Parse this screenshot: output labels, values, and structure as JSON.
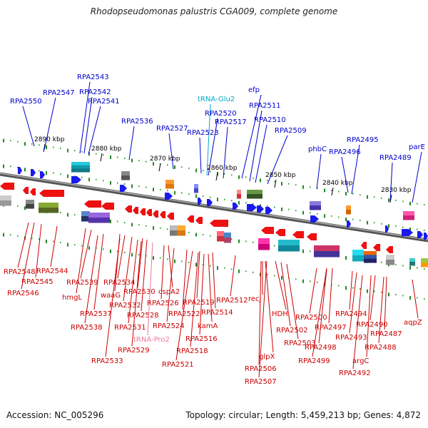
{
  "title": "Rhodopseudomonas palustris CGA009, complete genome",
  "footer": {
    "accession": "Accession: NC_005296",
    "summary": "Topology: circular; Length: 5,459,213 bp; Genes: 4,872"
  },
  "colors": {
    "forward_gene": "#1a1aee",
    "reverse_gene": "#ee1111",
    "label_forward": "#0000cc",
    "label_reverse": "#cc0000",
    "label_trna_forward": "#00aacc",
    "label_trna_reverse": "#ee7799",
    "axis": "#777777",
    "tick_mark": "#228822"
  },
  "coordinate_ticks": [
    "2890 kbp",
    "2880 kbp",
    "2870 kbp",
    "2860 kbp",
    "2850 kbp",
    "2840 kbp",
    "2830 kbp"
  ],
  "forward_labels": [
    {
      "text": "RPA2550",
      "kind": "gene"
    },
    {
      "text": "RPA2547",
      "kind": "gene"
    },
    {
      "text": "RPA2543",
      "kind": "gene"
    },
    {
      "text": "RPA2542",
      "kind": "gene"
    },
    {
      "text": "RPA2541",
      "kind": "gene"
    },
    {
      "text": "RPA2536",
      "kind": "gene"
    },
    {
      "text": "RPA2527",
      "kind": "gene"
    },
    {
      "text": "tRNA-Glu2",
      "kind": "trna"
    },
    {
      "text": "RPA2520",
      "kind": "gene"
    },
    {
      "text": "RPA2523",
      "kind": "gene"
    },
    {
      "text": "RPA2517",
      "kind": "gene"
    },
    {
      "text": "efp",
      "kind": "gene"
    },
    {
      "text": "RPA2511",
      "kind": "gene"
    },
    {
      "text": "RPA2510",
      "kind": "gene"
    },
    {
      "text": "RPA2509",
      "kind": "gene"
    },
    {
      "text": "phbC",
      "kind": "gene"
    },
    {
      "text": "RPA2495",
      "kind": "gene"
    },
    {
      "text": "RPA2496",
      "kind": "gene"
    },
    {
      "text": "RPA2489",
      "kind": "gene"
    },
    {
      "text": "parE",
      "kind": "gene"
    }
  ],
  "reverse_labels": [
    {
      "text": "RPA2548",
      "kind": "gene"
    },
    {
      "text": "RPA2544",
      "kind": "gene"
    },
    {
      "text": "RPA2545",
      "kind": "gene"
    },
    {
      "text": "RPA2546",
      "kind": "gene"
    },
    {
      "text": "RPA2539",
      "kind": "gene"
    },
    {
      "text": "hmgL",
      "kind": "gene"
    },
    {
      "text": "RPA2534",
      "kind": "gene"
    },
    {
      "text": "waaG",
      "kind": "gene"
    },
    {
      "text": "RPA2530",
      "kind": "gene"
    },
    {
      "text": "RPA2532",
      "kind": "gene"
    },
    {
      "text": "RPA2537",
      "kind": "gene"
    },
    {
      "text": "RPA2528",
      "kind": "gene"
    },
    {
      "text": "RPA2538",
      "kind": "gene"
    },
    {
      "text": "RPA2531",
      "kind": "gene"
    },
    {
      "text": "tRNA-Pro2",
      "kind": "trna"
    },
    {
      "text": "RPA2529",
      "kind": "gene"
    },
    {
      "text": "RPA2533",
      "kind": "gene"
    },
    {
      "text": "cspA2",
      "kind": "gene"
    },
    {
      "text": "RPA2526",
      "kind": "gene"
    },
    {
      "text": "RPA2522",
      "kind": "gene"
    },
    {
      "text": "RPA2524",
      "kind": "gene"
    },
    {
      "text": "RPA2519",
      "kind": "gene"
    },
    {
      "text": "RPA2514",
      "kind": "gene"
    },
    {
      "text": "RPA2512",
      "kind": "gene"
    },
    {
      "text": "kamA",
      "kind": "gene"
    },
    {
      "text": "RPA2516",
      "kind": "gene"
    },
    {
      "text": "RPA2518",
      "kind": "gene"
    },
    {
      "text": "RPA2521",
      "kind": "gene"
    },
    {
      "text": "recJ",
      "kind": "gene"
    },
    {
      "text": "HDH",
      "kind": "gene"
    },
    {
      "text": "glpX",
      "kind": "gene"
    },
    {
      "text": "RPA2502",
      "kind": "gene"
    },
    {
      "text": "RPA2503",
      "kind": "gene"
    },
    {
      "text": "RPA2506",
      "kind": "gene"
    },
    {
      "text": "RPA2507",
      "kind": "gene"
    },
    {
      "text": "RPA2500",
      "kind": "gene"
    },
    {
      "text": "RPA2494",
      "kind": "gene"
    },
    {
      "text": "RPA2497",
      "kind": "gene"
    },
    {
      "text": "RPA2490",
      "kind": "gene"
    },
    {
      "text": "RPA2498",
      "kind": "gene"
    },
    {
      "text": "RPA2493",
      "kind": "gene"
    },
    {
      "text": "RPA2487",
      "kind": "gene"
    },
    {
      "text": "aqpZ",
      "kind": "gene"
    },
    {
      "text": "RPA2499",
      "kind": "gene"
    },
    {
      "text": "RPA2488",
      "kind": "gene"
    },
    {
      "text": "argC",
      "kind": "gene"
    },
    {
      "text": "RPA2492",
      "kind": "gene"
    }
  ]
}
